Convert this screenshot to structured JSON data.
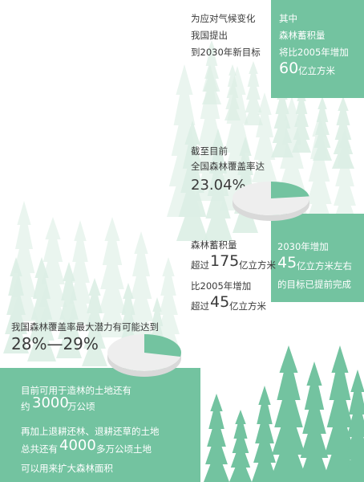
{
  "colors": {
    "green": "#73c3a0",
    "light_green": "#dbeee4",
    "pale_green": "#eaf5ef",
    "text": "#3a3a3a",
    "white": "#ffffff"
  },
  "top_left": {
    "line1": "为应对气候变化",
    "line2": "我国提出",
    "line3": "到2030年新目标"
  },
  "top_right": {
    "line1": "其中",
    "line2": "森林蓄积量",
    "line3": "将比2005年增加",
    "value": "60",
    "unit": "亿立方米"
  },
  "coverage": {
    "line1": "截至目前",
    "line2": "全国森林覆盖率达",
    "value": "23.04%",
    "percent": 23.04
  },
  "stock": {
    "line1": "森林蓄积量",
    "prefix1": "超过",
    "value1": "175",
    "unit1": "亿立方米",
    "line2": "比2005年增加",
    "prefix2": "超过",
    "value2": "45",
    "unit2": "亿立方米"
  },
  "target_done": {
    "line1": "2030年增加",
    "value": "45",
    "unit": "亿立方米左右",
    "line3": "的目标已提前完成"
  },
  "potential": {
    "line1": "我国森林覆盖率最大潜力有可能达到",
    "value": "28%—29%",
    "percent": 28.5
  },
  "land": {
    "line1": "目前可用于造林的土地还有",
    "prefix1": "约",
    "value1": "3000",
    "unit1": "万公顷",
    "line3": "再加上退耕还林、退耕还草的土地",
    "prefix2": "总共还有",
    "value2": "4000",
    "unit2": "多万公顷土地",
    "line5": "可以用来扩大森林面积"
  }
}
